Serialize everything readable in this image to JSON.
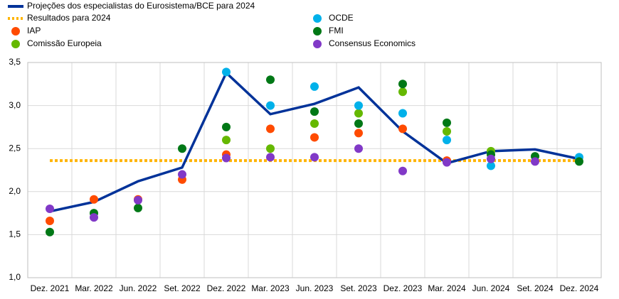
{
  "chart_data": {
    "type": "line",
    "categories": [
      "Dez. 2021",
      "Mar. 2022",
      "Jun. 2022",
      "Set. 2022",
      "Dez. 2022",
      "Mar. 2023",
      "Jun. 2023",
      "Set. 2023",
      "Dez. 2023",
      "Mar. 2024",
      "Jun. 2024",
      "Set. 2024",
      "Dez. 2024"
    ],
    "ylim": [
      1.0,
      3.5
    ],
    "yticks": [
      {
        "value": 1.0,
        "label": "1,0"
      },
      {
        "value": 1.5,
        "label": "1,5"
      },
      {
        "value": 2.0,
        "label": "2,0"
      },
      {
        "value": 2.5,
        "label": "2,5"
      },
      {
        "value": 3.0,
        "label": "3,0"
      },
      {
        "value": 3.5,
        "label": "3,5"
      }
    ],
    "grid": true,
    "series": [
      {
        "name": "Projeções dos especialistas do Eurosistema/BCE para 2024",
        "style": "line",
        "color": "#003299",
        "values": [
          1.77,
          1.88,
          2.12,
          2.28,
          3.38,
          2.9,
          3.02,
          3.21,
          2.7,
          2.33,
          2.47,
          2.49,
          2.38
        ]
      },
      {
        "name": "Resultados para 2024",
        "style": "hline",
        "color": "#ffb400",
        "value": 2.36
      },
      {
        "name": "IAP",
        "style": "dots",
        "color": "#ff4b00",
        "values": [
          1.66,
          1.91,
          1.91,
          2.14,
          2.43,
          2.73,
          2.63,
          2.68,
          2.73,
          2.36,
          null,
          null,
          null
        ]
      },
      {
        "name": "Comissão Europeia",
        "style": "dots",
        "color": "#65b800",
        "values": [
          null,
          null,
          null,
          null,
          2.6,
          2.5,
          2.79,
          2.91,
          3.16,
          2.7,
          2.47,
          null,
          null
        ]
      },
      {
        "name": "OCDE",
        "style": "dots",
        "color": "#00b1ea",
        "values": [
          null,
          null,
          null,
          null,
          3.39,
          3.0,
          3.22,
          3.0,
          2.91,
          2.6,
          2.3,
          null,
          2.4
        ]
      },
      {
        "name": "FMI",
        "style": "dots",
        "color": "#007816",
        "values": [
          1.53,
          1.75,
          1.81,
          2.5,
          2.75,
          3.3,
          2.93,
          2.79,
          3.25,
          2.8,
          2.43,
          2.41,
          2.35
        ]
      },
      {
        "name": "Consensus Economics",
        "style": "dots",
        "color": "#8139c7",
        "values": [
          1.8,
          1.7,
          1.9,
          2.2,
          2.39,
          2.4,
          2.4,
          2.5,
          2.24,
          2.34,
          2.38,
          2.35,
          null
        ]
      }
    ]
  }
}
